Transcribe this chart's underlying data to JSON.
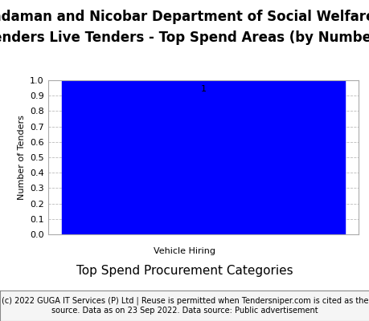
{
  "title_line1": "Andaman and Nicobar Department of Social Welfare e",
  "title_line2": "Tenders Live Tenders - Top Spend Areas (by Number)",
  "categories": [
    "Vehicle Hiring"
  ],
  "values": [
    1
  ],
  "bar_color": "#0000FF",
  "ylabel": "Number of Tenders",
  "xlabel": "Top Spend Procurement Categories",
  "ylim": [
    0,
    1.0
  ],
  "yticks": [
    0.0,
    0.1,
    0.2,
    0.3,
    0.4,
    0.5,
    0.6,
    0.7,
    0.8,
    0.9,
    1.0
  ],
  "bar_label_fontsize": 8,
  "axis_tick_fontsize": 8,
  "ylabel_fontsize": 8,
  "xlabel_fontsize": 11,
  "title_fontsize": 12,
  "footer_text": "(c) 2022 GUGA IT Services (P) Ltd | Reuse is permitted when Tendersniper.com is cited as the\nsource. Data as on 23 Sep 2022. Data source: Public advertisement",
  "footer_fontsize": 7,
  "background_color": "#ffffff",
  "grid_color": "#bbbbbb"
}
